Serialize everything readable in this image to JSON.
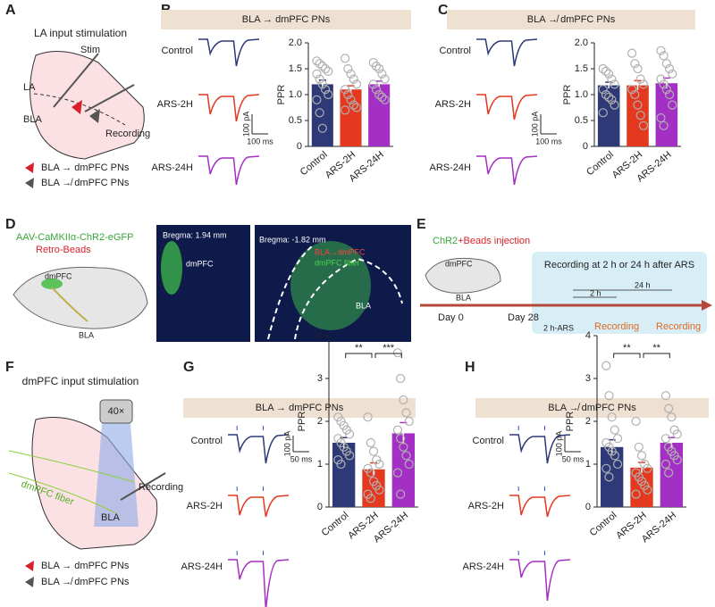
{
  "panel_letters": [
    "A",
    "B",
    "C",
    "D",
    "E",
    "F",
    "G",
    "H"
  ],
  "panel_a": {
    "title": "LA input stimulation",
    "stim": "Stim",
    "la": "LA",
    "bla": "BLA",
    "recording": "Recording",
    "legend": [
      "BLA → dmPFC PNs",
      "BLA ↛ dmPFC PNs"
    ]
  },
  "panel_d": {
    "virus": "AAV-CaMKIIα-ChR2-eGFP",
    "beads": "Retro-Beads",
    "dmpfc": "dmPFC",
    "bla": "BLA",
    "image1": {
      "bregma": "Bregma: 1.94 mm",
      "region": "dmPFC"
    },
    "image2": {
      "bregma": "Bregma: -1.82 mm",
      "label_red": "BLA→dmPFC",
      "label_green": "dmPFC fiber",
      "region": "BLA"
    }
  },
  "panel_e": {
    "chr2": "ChR2",
    "beads": "+Beads injection",
    "dmpfc": "dmPFC",
    "bla": "BLA",
    "box_title": "Recording at 2 h or 24 h after ARS",
    "t24": "24 h",
    "t2": "2 h",
    "day0": "Day 0",
    "day28": "Day 28",
    "ars": "2 h-ARS",
    "rec1": "Recording",
    "rec2": "Recording"
  },
  "panel_f": {
    "title": "dmPFC input stimulation",
    "objective": "40×",
    "fiber": "dmPFC fiber",
    "recording": "Recording",
    "bla": "BLA",
    "legend": [
      "BLA → dmPFC PNs",
      "BLA ↛ dmPFC PNs"
    ]
  },
  "traces": [
    {
      "labels": [
        "Control",
        "ARS-2H",
        "ARS-24H"
      ],
      "scale_amp": "100 pA",
      "scale_time": "100 ms"
    },
    {
      "labels": [
        "Control",
        "ARS-2H",
        "ARS-24H"
      ],
      "scale_amp": "100 pA",
      "scale_time": "100 ms"
    },
    {
      "labels": [
        "Control",
        "ARS-2H",
        "ARS-24H"
      ],
      "scale_amp": "100 pA",
      "scale_time": "50 ms"
    },
    {
      "labels": [
        "Control",
        "ARS-2H",
        "ARS-24H"
      ],
      "scale_amp": "100 pA",
      "scale_time": "50 ms"
    }
  ],
  "chart_data": [
    {
      "type": "bar",
      "title": "BLA → dmPFC PNs",
      "ylabel": "PPR",
      "categories": [
        "Control",
        "ARS-2H",
        "ARS-24H"
      ],
      "colors": [
        "#2e3a78",
        "#e4381f",
        "#a42fc4"
      ],
      "values": [
        1.2,
        1.1,
        1.2
      ],
      "errors": [
        0.08,
        0.07,
        0.06
      ],
      "points": [
        [
          1.65,
          1.6,
          1.55,
          1.5,
          1.45,
          1.4,
          1.3,
          1.2,
          1.1,
          1.0,
          0.9,
          0.65,
          0.35
        ],
        [
          1.7,
          1.5,
          1.4,
          1.3,
          1.2,
          1.1,
          1.0,
          0.9,
          0.8,
          0.75,
          0.7
        ],
        [
          1.62,
          1.55,
          1.5,
          1.4,
          1.3,
          1.2,
          1.1,
          1.0,
          0.95,
          0.9
        ]
      ],
      "ylim": [
        0,
        2
      ],
      "yticks": [
        0,
        0.5,
        {
          "value": 1,
          "label": "1.0"
        },
        1.5,
        {
          "value": 2,
          "label": "2.0"
        }
      ],
      "annotations": []
    },
    {
      "type": "bar",
      "title": "BLA ↛ dmPFC PNs",
      "ylabel": "PPR",
      "categories": [
        "Control",
        "ARS-2H",
        "ARS-24H"
      ],
      "colors": [
        "#2e3a78",
        "#e4381f",
        "#a42fc4"
      ],
      "values": [
        1.18,
        1.18,
        1.22
      ],
      "errors": [
        0.06,
        0.09,
        0.1
      ],
      "points": [
        [
          1.5,
          1.45,
          1.4,
          1.3,
          1.2,
          1.1,
          1.0,
          0.95,
          0.9,
          0.8,
          0.65
        ],
        [
          1.8,
          1.6,
          1.5,
          1.3,
          1.2,
          1.1,
          1.0,
          0.8,
          0.6,
          0.4
        ],
        [
          1.85,
          1.75,
          1.6,
          1.5,
          1.4,
          1.3,
          1.2,
          1.1,
          1.0,
          0.8,
          0.55,
          0.4
        ]
      ],
      "ylim": [
        0,
        2
      ],
      "yticks": [
        0,
        0.5,
        {
          "value": 1,
          "label": "1.0"
        },
        1.5,
        {
          "value": 2,
          "label": "2.0"
        }
      ],
      "annotations": []
    },
    {
      "type": "bar",
      "title": "BLA → dmPFC PNs",
      "ylabel": "PPR",
      "categories": [
        "Control",
        "ARS-2H",
        "ARS-24H"
      ],
      "colors": [
        "#2e3a78",
        "#e4381f",
        "#a42fc4"
      ],
      "values": [
        1.5,
        0.88,
        1.72
      ],
      "errors": [
        0.12,
        0.15,
        0.25
      ],
      "points": [
        [
          2.1,
          2.0,
          1.9,
          1.8,
          1.7,
          1.6,
          1.5,
          1.4,
          1.3,
          1.2,
          1.1,
          1.0
        ],
        [
          2.1,
          1.5,
          1.3,
          1.1,
          1.0,
          0.9,
          0.8,
          0.6,
          0.5,
          0.4,
          0.3,
          0.2
        ],
        [
          3.6,
          3.0,
          2.5,
          2.2,
          2.0,
          1.8,
          1.6,
          1.4,
          1.2,
          1.0,
          0.8,
          0.3
        ]
      ],
      "ylim": [
        0,
        4
      ],
      "yticks": [
        0,
        1,
        2,
        3,
        4
      ],
      "annotations": [
        "**",
        "***"
      ]
    },
    {
      "type": "bar",
      "title": "BLA ↛ dmPFC PNs",
      "ylabel": "PPR",
      "categories": [
        "Control",
        "ARS-2H",
        "ARS-24H"
      ],
      "colors": [
        "#2e3a78",
        "#e4381f",
        "#a42fc4"
      ],
      "values": [
        1.4,
        0.92,
        1.5
      ],
      "errors": [
        0.17,
        0.12,
        0.12
      ],
      "points": [
        [
          3.3,
          2.6,
          2.1,
          1.8,
          1.6,
          1.5,
          1.4,
          1.3,
          1.2,
          1.0,
          0.9,
          0.7
        ],
        [
          2.0,
          1.4,
          1.2,
          1.0,
          0.9,
          0.8,
          0.7,
          0.6,
          0.5,
          0.4,
          0.3
        ],
        [
          2.6,
          2.3,
          2.1,
          1.8,
          1.7,
          1.6,
          1.4,
          1.3,
          1.2,
          1.1,
          1.0,
          0.8
        ]
      ],
      "ylim": [
        0,
        4
      ],
      "yticks": [
        0,
        1,
        2,
        3,
        4
      ],
      "annotations": [
        "**",
        "**"
      ]
    }
  ]
}
